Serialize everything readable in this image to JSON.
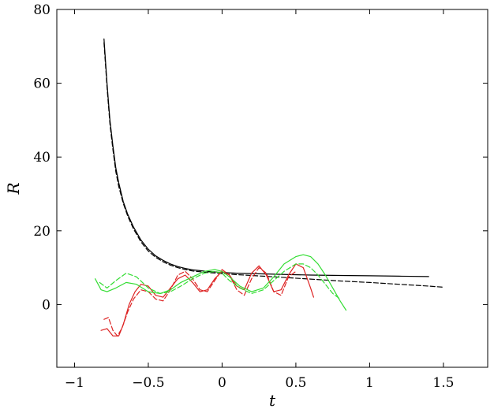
{
  "chart_data": {
    "type": "line",
    "title": "",
    "xlabel": "t",
    "ylabel": "R",
    "xlim": [
      -1.12,
      1.8
    ],
    "ylim": [
      -17,
      80
    ],
    "xticks": [
      -1,
      -0.5,
      0,
      0.5,
      1,
      1.5
    ],
    "xtick_labels": [
      "−1",
      "−0.5",
      "0",
      "0.5",
      "1",
      "1.5"
    ],
    "yticks": [
      0,
      20,
      40,
      60,
      80
    ],
    "ytick_labels": [
      "0",
      "20",
      "40",
      "60",
      "80"
    ],
    "grid": false,
    "legend": "none",
    "series": [
      {
        "color": "#000000",
        "dash": "solid",
        "x": [
          -0.8,
          -0.78,
          -0.76,
          -0.74,
          -0.72,
          -0.7,
          -0.67,
          -0.64,
          -0.6,
          -0.55,
          -0.5,
          -0.45,
          -0.4,
          -0.35,
          -0.3,
          -0.25,
          -0.2,
          -0.1,
          0.0,
          0.1,
          0.2,
          0.4,
          0.6,
          0.8,
          1.0,
          1.2,
          1.4
        ],
        "y": [
          72,
          60,
          50,
          43,
          37,
          33,
          28,
          24.5,
          21,
          17.5,
          15,
          13.2,
          12,
          11,
          10.3,
          9.8,
          9.4,
          9.0,
          8.7,
          8.5,
          8.4,
          8.2,
          8.0,
          7.9,
          7.8,
          7.7,
          7.6
        ]
      },
      {
        "color": "#000000",
        "dash": "dashed",
        "x": [
          -0.8,
          -0.78,
          -0.76,
          -0.74,
          -0.72,
          -0.7,
          -0.67,
          -0.64,
          -0.6,
          -0.55,
          -0.5,
          -0.45,
          -0.4,
          -0.35,
          -0.3,
          -0.25,
          -0.2,
          -0.1,
          0.0,
          0.1,
          0.2,
          0.4,
          0.6,
          0.8,
          1.0,
          1.2,
          1.4,
          1.5
        ],
        "y": [
          71,
          59,
          49,
          42,
          36,
          32,
          27.5,
          24,
          20.5,
          17,
          14.5,
          12.8,
          11.6,
          10.7,
          10.0,
          9.5,
          9.1,
          8.7,
          8.4,
          8.1,
          7.9,
          7.4,
          6.9,
          6.4,
          6.0,
          5.5,
          5.0,
          4.7
        ]
      },
      {
        "color": "#dd2222",
        "dash": "solid",
        "x": [
          -0.82,
          -0.78,
          -0.74,
          -0.7,
          -0.67,
          -0.63,
          -0.59,
          -0.55,
          -0.5,
          -0.45,
          -0.4,
          -0.35,
          -0.3,
          -0.25,
          -0.2,
          -0.15,
          -0.1,
          -0.05,
          0.0,
          0.05,
          0.1,
          0.15,
          0.2,
          0.25,
          0.3,
          0.35,
          0.4,
          0.45,
          0.5,
          0.55,
          0.6,
          0.62
        ],
        "y": [
          -7,
          -6.5,
          -8.5,
          -8.5,
          -5.5,
          0.0,
          3.5,
          5.5,
          5.0,
          2.5,
          2.0,
          4.5,
          7.0,
          8.0,
          6.0,
          3.5,
          4.0,
          7.0,
          9.0,
          8.0,
          5.0,
          4.0,
          8.5,
          10.5,
          8.0,
          3.5,
          4.0,
          8.0,
          11.0,
          10.0,
          4.5,
          2.0
        ]
      },
      {
        "color": "#dd2222",
        "dash": "dashed",
        "x": [
          -0.8,
          -0.77,
          -0.74,
          -0.71,
          -0.68,
          -0.64,
          -0.6,
          -0.55,
          -0.5,
          -0.45,
          -0.4,
          -0.35,
          -0.3,
          -0.25,
          -0.2,
          -0.15,
          -0.1,
          -0.05,
          0.0,
          0.05,
          0.1,
          0.15,
          0.2,
          0.25,
          0.3,
          0.35,
          0.4,
          0.45,
          0.5
        ],
        "y": [
          -4,
          -3.5,
          -7,
          -8.5,
          -6.5,
          -2.0,
          1.5,
          4.0,
          3.5,
          1.5,
          1.0,
          4.0,
          8.0,
          9.0,
          7.0,
          4.0,
          3.5,
          6.5,
          9.5,
          8.0,
          4.0,
          2.5,
          7.0,
          10.0,
          8.5,
          3.5,
          2.5,
          7.5,
          9.0
        ]
      },
      {
        "color": "#33dd33",
        "dash": "solid",
        "x": [
          -0.86,
          -0.82,
          -0.78,
          -0.72,
          -0.65,
          -0.58,
          -0.5,
          -0.42,
          -0.35,
          -0.28,
          -0.2,
          -0.12,
          -0.05,
          0.0,
          0.05,
          0.12,
          0.2,
          0.28,
          0.35,
          0.42,
          0.5,
          0.55,
          0.6,
          0.65,
          0.7,
          0.75,
          0.8,
          0.84
        ],
        "y": [
          7.0,
          4.0,
          3.5,
          4.5,
          6.0,
          5.5,
          3.5,
          3.0,
          4.0,
          6.0,
          7.5,
          9.0,
          9.5,
          9.0,
          7.5,
          5.0,
          3.5,
          4.5,
          7.5,
          11.0,
          13.0,
          13.5,
          13.0,
          11.0,
          8.0,
          4.5,
          1.0,
          -1.5
        ]
      },
      {
        "color": "#33dd33",
        "dash": "dashed",
        "x": [
          -0.83,
          -0.78,
          -0.72,
          -0.65,
          -0.58,
          -0.5,
          -0.42,
          -0.35,
          -0.28,
          -0.2,
          -0.12,
          -0.05,
          0.0,
          0.05,
          0.12,
          0.2,
          0.28,
          0.35,
          0.42,
          0.5,
          0.55,
          0.6,
          0.65,
          0.7,
          0.75,
          0.8
        ],
        "y": [
          6.0,
          4.5,
          6.5,
          8.5,
          7.5,
          4.5,
          3.0,
          3.5,
          5.0,
          7.0,
          8.5,
          9.0,
          8.5,
          6.5,
          4.5,
          3.0,
          4.0,
          6.5,
          9.0,
          11.0,
          11.0,
          10.0,
          8.0,
          5.5,
          3.0,
          1.5
        ]
      }
    ]
  }
}
